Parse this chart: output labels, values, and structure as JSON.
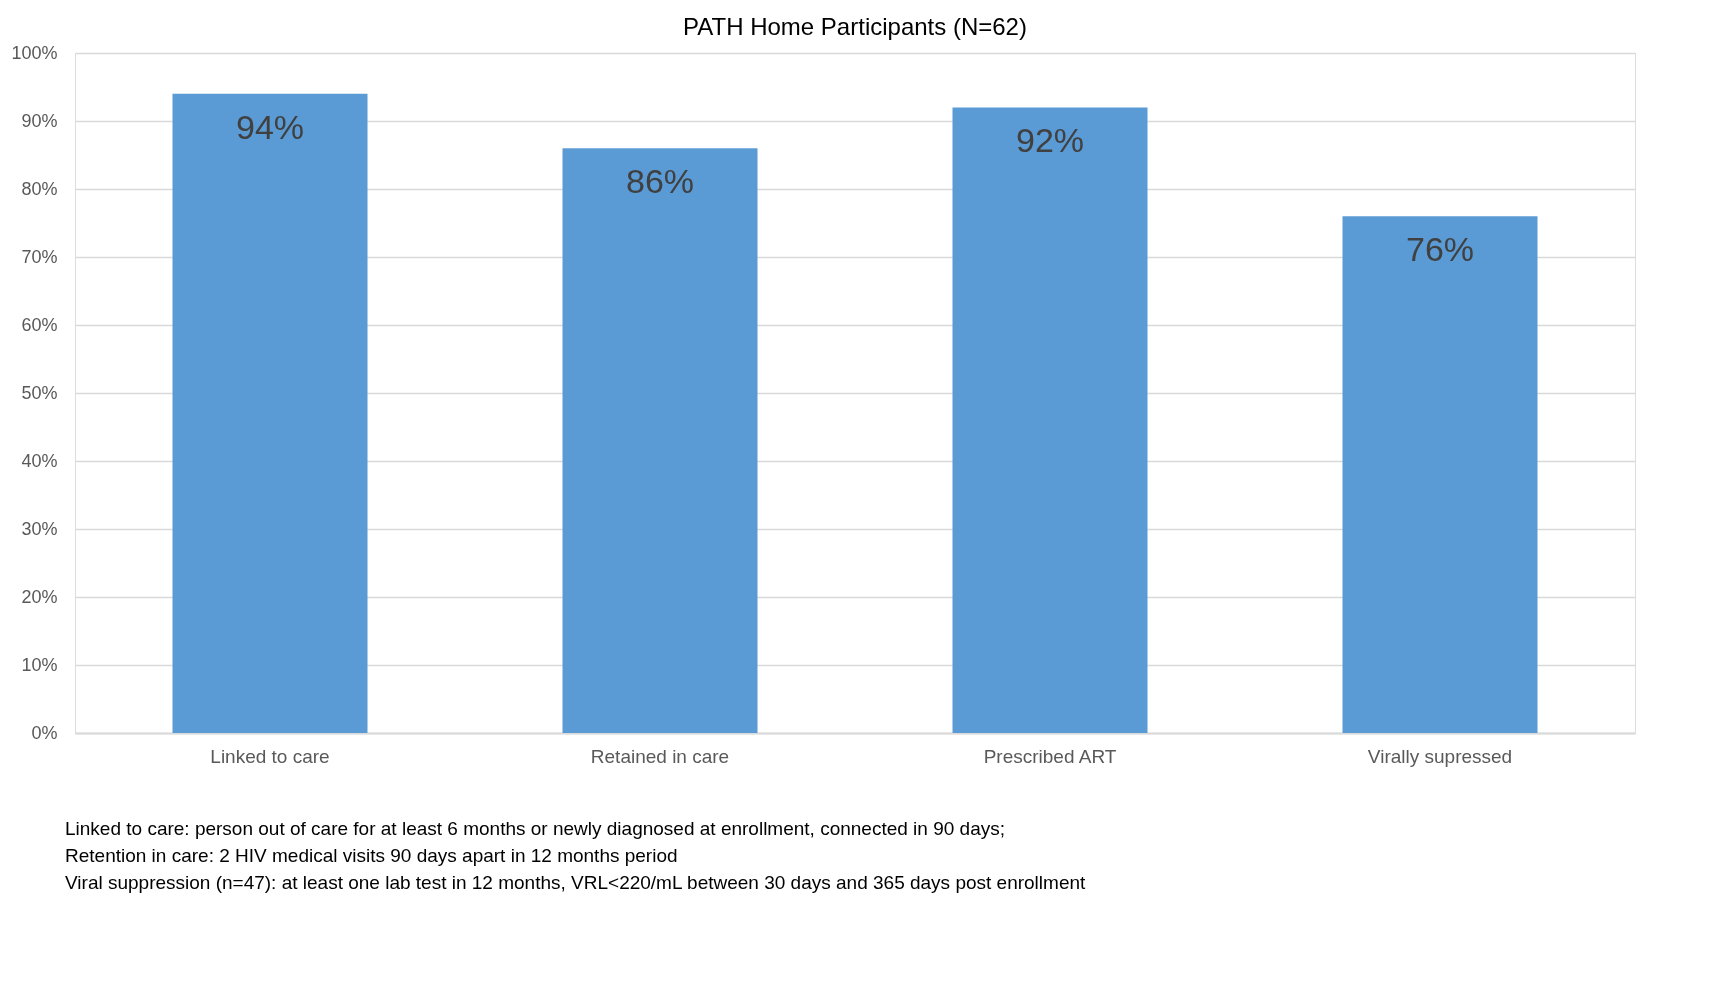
{
  "chart_data": {
    "type": "bar",
    "title": "PATH Home Participants (N=62)",
    "categories": [
      "Linked to care",
      "Retained in care",
      "Prescribed ART",
      "Virally supressed"
    ],
    "values": [
      94,
      86,
      92,
      76
    ],
    "color": "#5b9bd5",
    "value_labels": [
      "94%",
      "86%",
      "92%",
      "76%"
    ],
    "ylim": [
      0,
      100
    ],
    "yticks": [
      {
        "value": 0,
        "label": "0%"
      },
      {
        "value": 10,
        "label": "10%"
      },
      {
        "value": 20,
        "label": "20%"
      },
      {
        "value": 30,
        "label": "30%"
      },
      {
        "value": 40,
        "label": "40%"
      },
      {
        "value": 50,
        "label": "50%"
      },
      {
        "value": 60,
        "label": "60%"
      },
      {
        "value": 70,
        "label": "70%"
      },
      {
        "value": 80,
        "label": "80%"
      },
      {
        "value": 90,
        "label": "90%"
      },
      {
        "value": 100,
        "label": "100%"
      }
    ],
    "grid": "y",
    "annotations": [
      "Linked to care: person out of care for at least 6 months or newly diagnosed at enrollment, connected in 90 days;",
      "Retention  in care: 2 HIV medical visits 90 days apart in 12 months period",
      "Viral suppression  (n=47): at least one lab test in 12 months, VRL<220/mL between 30 days and 365 days post enrollment"
    ]
  }
}
